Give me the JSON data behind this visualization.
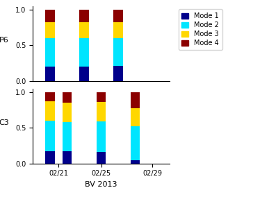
{
  "P6": {
    "x_positions": [
      1,
      3,
      5
    ],
    "mode1": [
      0.2,
      0.2,
      0.21
    ],
    "mode2": [
      0.4,
      0.4,
      0.39
    ],
    "mode3": [
      0.22,
      0.22,
      0.22
    ],
    "mode4": [
      0.18,
      0.18,
      0.18
    ]
  },
  "C3": {
    "x_positions": [
      1,
      2,
      4,
      6
    ],
    "mode1": [
      0.17,
      0.17,
      0.16,
      0.05
    ],
    "mode2": [
      0.43,
      0.41,
      0.43,
      0.47
    ],
    "mode3": [
      0.27,
      0.27,
      0.27,
      0.25
    ],
    "mode4": [
      0.13,
      0.15,
      0.14,
      0.23
    ]
  },
  "colors": {
    "mode1": "#00008B",
    "mode2": "#00E5FF",
    "mode3": "#FFD700",
    "mode4": "#8B0000"
  },
  "bar_width": 0.55,
  "xtick_positions": [
    1.5,
    4.0,
    7.0
  ],
  "xticklabels": [
    "02/21",
    "02/25",
    "02/29"
  ],
  "xlim": [
    0,
    8
  ],
  "xlabel": "BV 2013",
  "ylabel_top": "P6",
  "ylabel_bottom": "C3",
  "legend_labels": [
    "Mode 1",
    "Mode 2",
    "Mode 3",
    "Mode 4"
  ],
  "ylim": [
    0,
    1.05
  ],
  "yticks": [
    0,
    0.5,
    1
  ]
}
